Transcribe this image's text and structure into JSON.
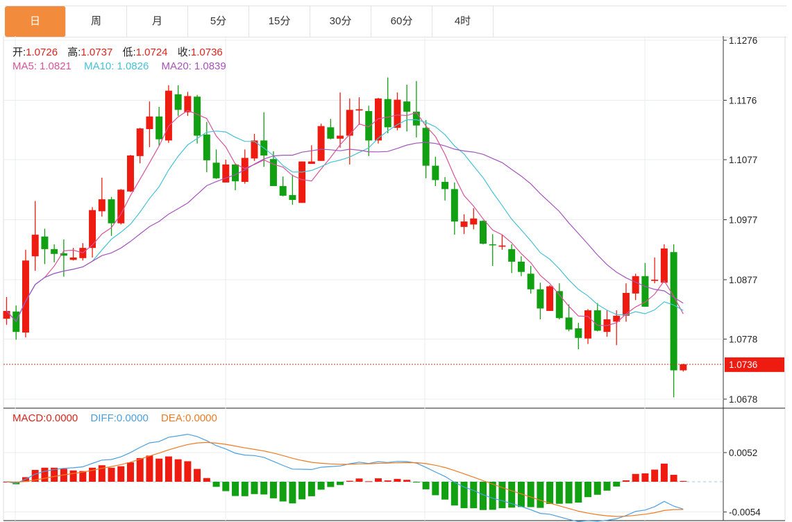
{
  "tabs": [
    {
      "label": "日",
      "active": true
    },
    {
      "label": "周",
      "active": false
    },
    {
      "label": "月",
      "active": false
    },
    {
      "label": "5分",
      "active": false
    },
    {
      "label": "15分",
      "active": false
    },
    {
      "label": "30分",
      "active": false
    },
    {
      "label": "60分",
      "active": false
    },
    {
      "label": "4时",
      "active": false
    }
  ],
  "ohlc_legend": {
    "open_label": "开:",
    "open": "1.0726",
    "high_label": "高:",
    "high": "1.0737",
    "low_label": "低:",
    "low": "1.0724",
    "close_label": "收:",
    "close": "1.0736"
  },
  "ma_legend": {
    "ma5_label": "MA5:",
    "ma5": "1.0821",
    "ma10_label": "MA10:",
    "ma10": "1.0826",
    "ma20_label": "MA20:",
    "ma20": "1.0839"
  },
  "macd_legend": {
    "macd_label": "MACD:",
    "macd": "0.0000",
    "diff_label": "DIFF:",
    "diff": "0.0000",
    "dea_label": "DEA:",
    "dea": "0.0000"
  },
  "colors": {
    "up": "#ee1c10",
    "down": "#11a011",
    "accent": "#f28c3c",
    "ma5": "#d9529a",
    "ma10": "#44c2d6",
    "ma20": "#a653bb",
    "macd": "#d9251d",
    "diff": "#4a9fdf",
    "dea": "#ee7b22"
  },
  "chart_data": [
    {
      "type": "candlestick",
      "ylim": [
        1.0678,
        1.1276
      ],
      "y_ticks": [
        "1.1276",
        "1.1176",
        "1.1077",
        "1.0977",
        "1.0877",
        "1.0778",
        "1.0678"
      ],
      "last_price": "1.0736",
      "grid": true,
      "candles_ohlc": [
        [
          1.0812,
          1.0848,
          1.0802,
          1.0825
        ],
        [
          1.0824,
          1.0834,
          1.0777,
          1.079
        ],
        [
          1.0789,
          1.0927,
          1.0781,
          1.0909
        ],
        [
          1.0916,
          1.1008,
          1.0892,
          1.0952
        ],
        [
          1.0949,
          1.0962,
          1.0903,
          1.0928
        ],
        [
          1.0928,
          1.0936,
          1.0906,
          1.092
        ],
        [
          1.0921,
          1.0944,
          1.0882,
          1.0917
        ],
        [
          1.091,
          1.093,
          1.0909,
          1.0914
        ],
        [
          1.0913,
          1.0938,
          1.0909,
          1.093
        ],
        [
          1.093,
          1.0998,
          1.0914,
          1.0993
        ],
        [
          1.0991,
          1.1047,
          1.0982,
          1.1011
        ],
        [
          1.1011,
          1.1015,
          1.095,
          1.0971
        ],
        [
          1.0971,
          1.1028,
          1.0969,
          1.1027
        ],
        [
          1.1024,
          1.1085,
          1.1023,
          1.1084
        ],
        [
          1.1083,
          1.113,
          1.1071,
          1.1129
        ],
        [
          1.1128,
          1.1174,
          1.1098,
          1.1149
        ],
        [
          1.1149,
          1.1165,
          1.11,
          1.1111
        ],
        [
          1.1109,
          1.1201,
          1.1105,
          1.1192
        ],
        [
          1.1186,
          1.1201,
          1.115,
          1.116
        ],
        [
          1.1156,
          1.119,
          1.115,
          1.1183
        ],
        [
          1.1182,
          1.1185,
          1.1104,
          1.1117
        ],
        [
          1.1119,
          1.114,
          1.1056,
          1.1076
        ],
        [
          1.1072,
          1.1094,
          1.1045,
          1.1046
        ],
        [
          1.1039,
          1.1077,
          1.1039,
          1.1069
        ],
        [
          1.1069,
          1.1071,
          1.1026,
          1.1041
        ],
        [
          1.104,
          1.1094,
          1.1037,
          1.108
        ],
        [
          1.1079,
          1.112,
          1.1075,
          1.1109
        ],
        [
          1.1109,
          1.1156,
          1.1065,
          1.1084
        ],
        [
          1.1078,
          1.1091,
          1.1033,
          1.1033
        ],
        [
          1.1033,
          1.1049,
          1.1016,
          1.1017
        ],
        [
          1.1018,
          1.1052,
          1.1002,
          1.101
        ],
        [
          1.1005,
          1.1074,
          1.1005,
          1.1074
        ],
        [
          1.107,
          1.1101,
          1.107,
          1.1074
        ],
        [
          1.1075,
          1.1137,
          1.1075,
          1.1133
        ],
        [
          1.1131,
          1.1145,
          1.1111,
          1.1112
        ],
        [
          1.1112,
          1.1189,
          1.1097,
          1.1117
        ],
        [
          1.1117,
          1.1179,
          1.1069,
          1.116
        ],
        [
          1.1159,
          1.1181,
          1.1135,
          1.1161
        ],
        [
          1.1158,
          1.1167,
          1.1083,
          1.1109
        ],
        [
          1.1109,
          1.118,
          1.1104,
          1.1179
        ],
        [
          1.1178,
          1.1214,
          1.1121,
          1.1131
        ],
        [
          1.113,
          1.1189,
          1.1126,
          1.1177
        ],
        [
          1.1174,
          1.1202,
          1.1124,
          1.1157
        ],
        [
          1.1157,
          1.1208,
          1.1114,
          1.1134
        ],
        [
          1.113,
          1.1143,
          1.1046,
          1.1067
        ],
        [
          1.1067,
          1.1082,
          1.1033,
          1.1043
        ],
        [
          1.104,
          1.1048,
          1.1009,
          1.1028
        ],
        [
          1.1028,
          1.1039,
          1.0952,
          1.0974
        ],
        [
          1.0965,
          1.0986,
          1.0953,
          1.0974
        ],
        [
          1.0969,
          1.0996,
          1.0961,
          1.0979
        ],
        [
          1.0975,
          1.0976,
          1.0936,
          1.0937
        ],
        [
          1.0936,
          1.0953,
          1.09,
          1.0935
        ],
        [
          1.0932,
          1.0952,
          1.0927,
          1.0934
        ],
        [
          1.0928,
          1.0936,
          1.0888,
          1.0907
        ],
        [
          1.0907,
          1.0916,
          1.0883,
          1.089
        ],
        [
          1.0887,
          1.09,
          1.0854,
          1.0861
        ],
        [
          1.0861,
          1.0872,
          1.0811,
          1.0829
        ],
        [
          1.0825,
          1.0868,
          1.0825,
          1.0866
        ],
        [
          1.0858,
          1.0871,
          1.0811,
          1.0813
        ],
        [
          1.0814,
          1.0836,
          1.0791,
          1.0794
        ],
        [
          1.0796,
          1.0805,
          1.0761,
          1.078
        ],
        [
          1.0779,
          1.0828,
          1.077,
          1.0826
        ],
        [
          1.0826,
          1.0838,
          1.0791,
          1.0792
        ],
        [
          1.079,
          1.0826,
          1.0782,
          1.0811
        ],
        [
          1.0807,
          1.0826,
          1.0768,
          1.0817
        ],
        [
          1.0817,
          1.0871,
          1.0807,
          1.0855
        ],
        [
          1.0854,
          1.0887,
          1.0843,
          1.0883
        ],
        [
          1.0883,
          1.0905,
          1.0832,
          1.0832
        ],
        [
          1.0875,
          1.0914,
          1.0871,
          1.0877
        ],
        [
          1.0872,
          1.0936,
          1.0872,
          1.0929
        ],
        [
          1.0923,
          1.0936,
          1.0681,
          1.0726
        ],
        [
          1.0726,
          1.0737,
          1.0724,
          1.0736
        ]
      ],
      "series": [
        {
          "name": "MA5"
        },
        {
          "name": "MA10"
        },
        {
          "name": "MA20"
        }
      ]
    },
    {
      "type": "macd",
      "ylim": [
        -0.0054,
        0.0052
      ],
      "y_ticks": [
        "0.0052",
        "-0.0054"
      ],
      "series": [
        {
          "name": "MACD"
        },
        {
          "name": "DIFF"
        },
        {
          "name": "DEA"
        }
      ]
    }
  ]
}
